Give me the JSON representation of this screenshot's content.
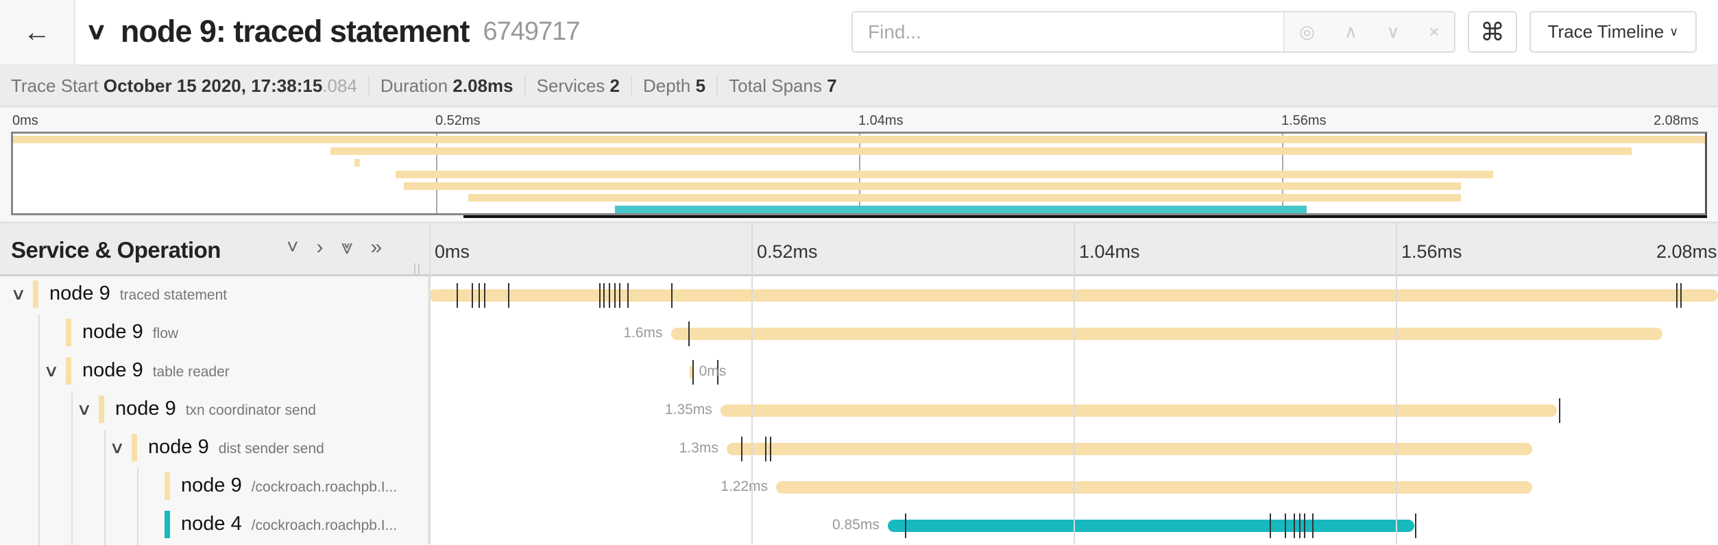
{
  "header": {
    "back_icon": "arrow-left-icon",
    "collapse_icon": "chevron-down-icon",
    "title": "node 9: traced statement",
    "trace_id": "6749717"
  },
  "find": {
    "placeholder": "Find...",
    "value": "",
    "locate_icon": "crosshair-icon",
    "prev_icon": "chevron-up-icon",
    "next_icon": "chevron-down-icon",
    "clear_icon": "close-icon"
  },
  "shortcut_button": {
    "icon": "command-key-icon",
    "label": "⌘"
  },
  "view_select": {
    "value": "Trace Timeline"
  },
  "stats": {
    "trace_start_label": "Trace Start",
    "trace_start": "October 15 2020, 17:38:15",
    "trace_start_ms": ".084",
    "duration_label": "Duration",
    "duration": "2.08ms",
    "services_label": "Services",
    "services": "2",
    "depth_label": "Depth",
    "depth": "5",
    "spans_label": "Total Spans",
    "spans": "7"
  },
  "ticks": [
    "0ms",
    "0.52ms",
    "1.04ms",
    "1.56ms",
    "2.08ms"
  ],
  "tick_values_ms": [
    0,
    0.52,
    1.04,
    1.56,
    2.08
  ],
  "total_ms": 2.08,
  "table_header": {
    "title": "Service & Operation",
    "collapse_one": "˅",
    "expand_one": "›",
    "collapse_all": "⩔",
    "expand_all": "»"
  },
  "colors": {
    "node9": "#f8dea8",
    "node4": "#17b8be",
    "minimap_node4": "#45c6ca"
  },
  "spans": [
    {
      "service": "node 9",
      "operation": "traced statement",
      "depth": 0,
      "has_children": true,
      "start_ms": 0,
      "duration_ms": 2.08,
      "duration_label": "",
      "logs_ms": [
        0.044,
        0.069,
        0.08,
        0.088,
        0.127,
        0.274,
        0.281,
        0.29,
        0.299,
        0.306,
        0.32,
        0.391,
        2.012,
        2.019
      ]
    },
    {
      "service": "node 9",
      "operation": "flow",
      "depth": 1,
      "has_children": false,
      "start_ms": 0.39,
      "duration_ms": 1.6,
      "duration_label": "1.6ms",
      "logs_ms": [
        0.418
      ]
    },
    {
      "service": "node 9",
      "operation": "table reader",
      "depth": 1,
      "has_children": true,
      "start_ms": 0.42,
      "duration_ms": 0,
      "duration_label": "0ms",
      "logs_ms": [
        0.425,
        0.465
      ]
    },
    {
      "service": "node 9",
      "operation": "txn coordinator send",
      "depth": 2,
      "has_children": true,
      "start_ms": 0.47,
      "duration_ms": 1.35,
      "duration_label": "1.35ms",
      "logs_ms": [
        1.823
      ]
    },
    {
      "service": "node 9",
      "operation": "dist sender send",
      "depth": 3,
      "has_children": true,
      "start_ms": 0.48,
      "duration_ms": 1.3,
      "duration_label": "1.3ms",
      "logs_ms": [
        0.503,
        0.542,
        0.55
      ]
    },
    {
      "service": "node 9",
      "operation": "/cockroach.roachpb.I...",
      "depth": 4,
      "has_children": false,
      "start_ms": 0.56,
      "duration_ms": 1.22,
      "duration_label": "1.22ms",
      "logs_ms": []
    },
    {
      "service": "node 4",
      "operation": "/cockroach.roachpb.I...",
      "depth": 4,
      "has_children": false,
      "start_ms": 0.74,
      "duration_ms": 0.85,
      "duration_label": "0.85ms",
      "logs_ms": [
        0.768,
        1.356,
        1.381,
        1.395,
        1.404,
        1.412,
        1.425,
        1.591
      ]
    }
  ]
}
